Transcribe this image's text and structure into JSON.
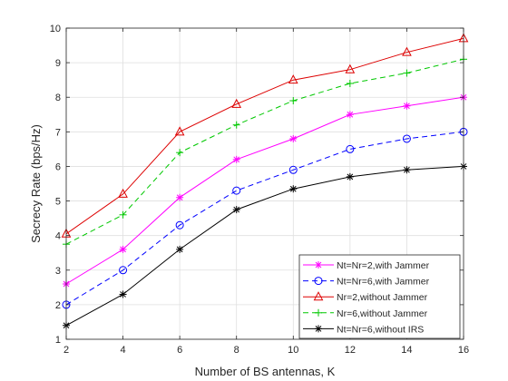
{
  "chart_data": {
    "type": "line",
    "xlabel": "Number of BS antennas, K",
    "ylabel": "Secrecy Rate (bps/Hz)",
    "xlim": [
      2,
      16
    ],
    "ylim": [
      1,
      10
    ],
    "x_ticks": [
      "2",
      "4",
      "6",
      "8",
      "10",
      "12",
      "14",
      "16"
    ],
    "y_ticks": [
      "1",
      "2",
      "3",
      "4",
      "5",
      "6",
      "7",
      "8",
      "9",
      "10"
    ],
    "grid": true,
    "legend_position": "bottom-right",
    "x": [
      2,
      4,
      6,
      8,
      10,
      12,
      14,
      16
    ],
    "series": [
      {
        "name": "Nt=Nr=2,with Jammer",
        "values": [
          2.6,
          3.6,
          5.1,
          6.2,
          6.8,
          7.5,
          7.75,
          8.0
        ],
        "color": "#ff00ff",
        "line_style": "solid",
        "marker": "star"
      },
      {
        "name": "Nt=Nr=6,with Jammer",
        "values": [
          2.0,
          3.0,
          4.3,
          5.3,
          5.9,
          6.5,
          6.8,
          7.0
        ],
        "color": "#0000ff",
        "line_style": "dashed",
        "marker": "circle"
      },
      {
        "name": "Nr=2,without Jammer",
        "values": [
          4.05,
          5.2,
          7.0,
          7.8,
          8.5,
          8.8,
          9.3,
          9.7
        ],
        "color": "#dd0000",
        "line_style": "solid",
        "marker": "triangle"
      },
      {
        "name": "Nr=6,without Jammer",
        "values": [
          3.75,
          4.6,
          6.4,
          7.2,
          7.9,
          8.4,
          8.7,
          9.1
        ],
        "color": "#00c800",
        "line_style": "dashed",
        "marker": "plus"
      },
      {
        "name": "Nt=Nr=6,without IRS",
        "values": [
          1.4,
          2.3,
          3.6,
          4.75,
          5.35,
          5.7,
          5.9,
          6.0
        ],
        "color": "#000000",
        "line_style": "solid",
        "marker": "asterisk"
      }
    ]
  }
}
